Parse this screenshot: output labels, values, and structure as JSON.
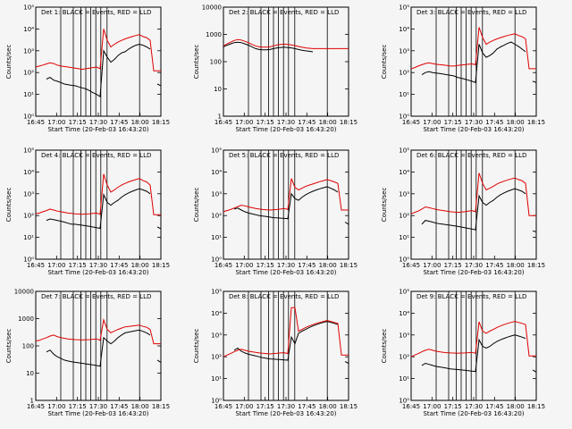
{
  "x_tick_labels": [
    "16:45",
    "17:00",
    "17:15",
    "17:30",
    "17:45",
    "18:00",
    "18:15"
  ],
  "y_axis_label": "Counts/sec",
  "colors": {
    "black_series": "#000000",
    "red_series": "#e00000",
    "background": "#f5f5f5"
  },
  "chart_data": [
    {
      "type": "line",
      "title": "Det 1: BLACK = Events, RED = LLD",
      "xlabel": "Start Time (20-Feb-03 16:43:20)",
      "ylabel": "Counts/sec",
      "log_y": true,
      "ylim": [
        1,
        100000
      ],
      "y_tick_labels": [
        "10⁰",
        "10¹",
        "10²",
        "10³",
        "10⁴",
        "10⁵"
      ],
      "series": [
        {
          "name": "Events",
          "color": "#000000",
          "values": [
            null,
            null,
            null,
            50,
            60,
            45,
            40,
            35,
            30,
            28,
            26,
            25,
            22,
            20,
            18,
            15,
            12,
            10,
            8,
            1000,
            500,
            300,
            400,
            600,
            800,
            900,
            1200,
            1500,
            1800,
            2000,
            1800,
            1500,
            1200,
            null,
            30,
            25
          ]
        },
        {
          "name": "LLD",
          "color": "#e00000",
          "values": [
            180,
            200,
            220,
            250,
            280,
            260,
            220,
            200,
            190,
            180,
            170,
            160,
            150,
            140,
            150,
            160,
            170,
            180,
            150,
            10000,
            3000,
            1500,
            2000,
            2500,
            3000,
            3500,
            4000,
            4500,
            5000,
            5500,
            4500,
            4000,
            3000,
            120,
            120,
            120
          ]
        }
      ]
    },
    {
      "type": "line",
      "title": "Det 2: BLACK = Events, RED = LLD",
      "xlabel": "Start Time (20-Feb-03 16:43:20)",
      "ylabel": "Counts/sec",
      "log_y": true,
      "ylim": [
        1,
        10000
      ],
      "y_tick_labels": [
        "1",
        "10",
        "100",
        "1000",
        "10000"
      ],
      "series": [
        {
          "name": "Events",
          "color": "#000000",
          "values": [
            350,
            400,
            450,
            500,
            520,
            500,
            450,
            400,
            350,
            300,
            280,
            270,
            270,
            280,
            300,
            320,
            330,
            340,
            330,
            320,
            300,
            280,
            260,
            250,
            240,
            230,
            null,
            null,
            null,
            null,
            null,
            null,
            null,
            null,
            null,
            null
          ]
        },
        {
          "name": "LLD",
          "color": "#e00000",
          "values": [
            380,
            450,
            520,
            600,
            650,
            620,
            560,
            500,
            430,
            380,
            350,
            340,
            340,
            350,
            380,
            410,
            430,
            440,
            430,
            410,
            390,
            360,
            340,
            320,
            310,
            300,
            300,
            300,
            300,
            300,
            300,
            300,
            300,
            300,
            300,
            300
          ]
        }
      ]
    },
    {
      "type": "line",
      "title": "Det 3: BLACK = Events, RED = LLD",
      "xlabel": "Start Time (20-Feb-03 16:43:20)",
      "ylabel": "Counts/sec",
      "log_y": true,
      "ylim": [
        1,
        100000
      ],
      "y_tick_labels": [
        "10⁰",
        "10¹",
        "10²",
        "10³",
        "10⁴",
        "10⁵"
      ],
      "series": [
        {
          "name": "Events",
          "color": "#000000",
          "values": [
            null,
            null,
            null,
            80,
            100,
            110,
            100,
            95,
            90,
            85,
            80,
            75,
            70,
            60,
            55,
            50,
            45,
            40,
            35,
            2000,
            800,
            500,
            600,
            800,
            1200,
            1500,
            1800,
            2200,
            2500,
            2000,
            1600,
            1200,
            900,
            null,
            40,
            35
          ]
        },
        {
          "name": "LLD",
          "color": "#e00000",
          "values": [
            150,
            170,
            200,
            230,
            260,
            280,
            260,
            240,
            230,
            220,
            210,
            200,
            200,
            210,
            220,
            230,
            240,
            250,
            230,
            12000,
            4000,
            2000,
            2500,
            3000,
            3500,
            4000,
            4500,
            5000,
            5500,
            6000,
            5000,
            4500,
            3500,
            150,
            150,
            150
          ]
        }
      ]
    },
    {
      "type": "line",
      "title": "Det 4: BLACK = Events, RED = LLD",
      "xlabel": "Start Time (20-Feb-03 16:43:20)",
      "ylabel": "Counts/sec",
      "log_y": true,
      "ylim": [
        1,
        100000
      ],
      "y_tick_labels": [
        "10⁰",
        "10¹",
        "10²",
        "10³",
        "10⁴",
        "10⁵"
      ],
      "series": [
        {
          "name": "Events",
          "color": "#000000",
          "values": [
            null,
            null,
            null,
            60,
            70,
            65,
            60,
            55,
            50,
            45,
            40,
            40,
            38,
            36,
            34,
            32,
            30,
            28,
            26,
            900,
            400,
            300,
            400,
            500,
            700,
            900,
            1100,
            1300,
            1500,
            1700,
            1500,
            1300,
            1000,
            null,
            30,
            25
          ]
        },
        {
          "name": "LLD",
          "color": "#e00000",
          "values": [
            120,
            130,
            150,
            170,
            200,
            180,
            160,
            150,
            140,
            130,
            125,
            120,
            118,
            115,
            118,
            120,
            125,
            130,
            115,
            8000,
            2500,
            1200,
            1500,
            2000,
            2500,
            3000,
            3500,
            4000,
            4500,
            5000,
            4000,
            3500,
            2500,
            110,
            110,
            110
          ]
        }
      ]
    },
    {
      "type": "line",
      "title": "Det 5: BLACK = Events, RED = LLD",
      "xlabel": "Start Time (20-Feb-03 16:43:20)",
      "ylabel": "Counts/sec",
      "log_y": true,
      "ylim": [
        1,
        100000
      ],
      "y_tick_labels": [
        "10⁰",
        "10¹",
        "10²",
        "10³",
        "10⁴",
        "10⁵"
      ],
      "series": [
        {
          "name": "Events",
          "color": "#000000",
          "values": [
            null,
            null,
            null,
            200,
            220,
            180,
            150,
            130,
            120,
            110,
            100,
            95,
            90,
            85,
            80,
            78,
            76,
            74,
            72,
            1000,
            600,
            500,
            700,
            900,
            1100,
            1300,
            1500,
            1700,
            1900,
            2100,
            1800,
            1500,
            1200,
            null,
            50,
            40
          ]
        },
        {
          "name": "LLD",
          "color": "#e00000",
          "values": [
            150,
            170,
            190,
            220,
            260,
            300,
            280,
            250,
            230,
            210,
            200,
            190,
            185,
            180,
            185,
            190,
            200,
            210,
            190,
            5000,
            2000,
            1500,
            1800,
            2200,
            2500,
            2800,
            3200,
            3600,
            4000,
            4500,
            4000,
            3500,
            3000,
            180,
            180,
            180
          ]
        }
      ]
    },
    {
      "type": "line",
      "title": "Det 6: BLACK = Events, RED = LLD",
      "xlabel": "Start Time (20-Feb-03 16:43:20)",
      "ylabel": "Counts/sec",
      "log_y": true,
      "ylim": [
        1,
        100000
      ],
      "y_tick_labels": [
        "10⁰",
        "10¹",
        "10²",
        "10³",
        "10⁴",
        "10⁵"
      ],
      "series": [
        {
          "name": "Events",
          "color": "#000000",
          "values": [
            null,
            null,
            null,
            40,
            60,
            55,
            50,
            45,
            42,
            40,
            38,
            36,
            34,
            32,
            30,
            28,
            26,
            24,
            22,
            800,
            400,
            300,
            400,
            500,
            700,
            900,
            1100,
            1300,
            1500,
            1700,
            1500,
            1300,
            1000,
            null,
            20,
            18
          ]
        },
        {
          "name": "LLD",
          "color": "#e00000",
          "values": [
            120,
            140,
            160,
            200,
            250,
            230,
            210,
            190,
            180,
            170,
            160,
            150,
            145,
            140,
            145,
            150,
            160,
            170,
            150,
            9000,
            3000,
            1500,
            1800,
            2200,
            2800,
            3300,
            3800,
            4300,
            4800,
            5300,
            4500,
            4000,
            3000,
            100,
            100,
            100
          ]
        }
      ]
    },
    {
      "type": "line",
      "title": "Det 7: BLACK = Events, RED = LLD",
      "xlabel": "Start Time (20-Feb-03 16:43:20)",
      "ylabel": "Counts/sec",
      "log_y": true,
      "ylim": [
        1,
        10000
      ],
      "y_tick_labels": [
        "1",
        "10",
        "100",
        "1000",
        "10000"
      ],
      "series": [
        {
          "name": "Events",
          "color": "#000000",
          "values": [
            null,
            null,
            null,
            60,
            70,
            50,
            40,
            35,
            30,
            28,
            26,
            25,
            24,
            23,
            22,
            21,
            20,
            19,
            18,
            200,
            150,
            120,
            150,
            200,
            250,
            300,
            320,
            340,
            360,
            380,
            340,
            300,
            250,
            null,
            30,
            25
          ]
        },
        {
          "name": "LLD",
          "color": "#e00000",
          "values": [
            150,
            160,
            180,
            200,
            230,
            250,
            220,
            200,
            190,
            180,
            175,
            170,
            168,
            165,
            168,
            170,
            175,
            180,
            160,
            900,
            400,
            300,
            350,
            400,
            450,
            500,
            520,
            540,
            560,
            580,
            520,
            480,
            400,
            120,
            120,
            120
          ]
        }
      ]
    },
    {
      "type": "line",
      "title": "Det 8: BLACK = Events, RED = LLD",
      "xlabel": "Start Time (20-Feb-03 16:43:20)",
      "ylabel": "Counts/sec",
      "log_y": true,
      "ylim": [
        1,
        100000
      ],
      "y_tick_labels": [
        "10⁰",
        "10¹",
        "10²",
        "10³",
        "10⁴",
        "10⁵"
      ],
      "series": [
        {
          "name": "Events",
          "color": "#000000",
          "values": [
            null,
            null,
            null,
            200,
            250,
            180,
            150,
            130,
            120,
            110,
            100,
            90,
            85,
            80,
            78,
            76,
            74,
            72,
            70,
            800,
            400,
            1200,
            1500,
            1800,
            2200,
            2600,
            3000,
            3400,
            3800,
            4200,
            3800,
            3400,
            3000,
            null,
            60,
            50
          ]
        },
        {
          "name": "LLD",
          "color": "#e00000",
          "values": [
            100,
            120,
            140,
            170,
            200,
            220,
            200,
            180,
            170,
            160,
            150,
            145,
            140,
            135,
            140,
            145,
            150,
            155,
            140,
            18000,
            18000,
            1500,
            1800,
            2200,
            2600,
            3000,
            3400,
            3800,
            4200,
            4600,
            4200,
            3800,
            3400,
            120,
            120,
            120
          ]
        }
      ]
    },
    {
      "type": "line",
      "title": "Det 9: BLACK = Events, RED = LLD",
      "xlabel": "Start Time (20-Feb-03 16:43:20)",
      "ylabel": "Counts/sec",
      "log_y": true,
      "ylim": [
        1,
        100000
      ],
      "y_tick_labels": [
        "10⁰",
        "10¹",
        "10²",
        "10³",
        "10⁴",
        "10⁵"
      ],
      "series": [
        {
          "name": "Events",
          "color": "#000000",
          "values": [
            null,
            null,
            null,
            40,
            50,
            45,
            40,
            36,
            34,
            32,
            30,
            28,
            27,
            26,
            25,
            24,
            23,
            22,
            21,
            600,
            300,
            250,
            300,
            400,
            500,
            600,
            700,
            800,
            900,
            1000,
            900,
            800,
            700,
            null,
            25,
            20
          ]
        },
        {
          "name": "LLD",
          "color": "#e00000",
          "values": [
            100,
            120,
            140,
            170,
            200,
            220,
            200,
            180,
            170,
            160,
            155,
            150,
            148,
            145,
            148,
            150,
            155,
            160,
            145,
            4000,
            1500,
            1200,
            1500,
            1800,
            2200,
            2600,
            3000,
            3400,
            3800,
            4200,
            3800,
            3400,
            3000,
            110,
            110,
            110
          ]
        }
      ]
    }
  ]
}
